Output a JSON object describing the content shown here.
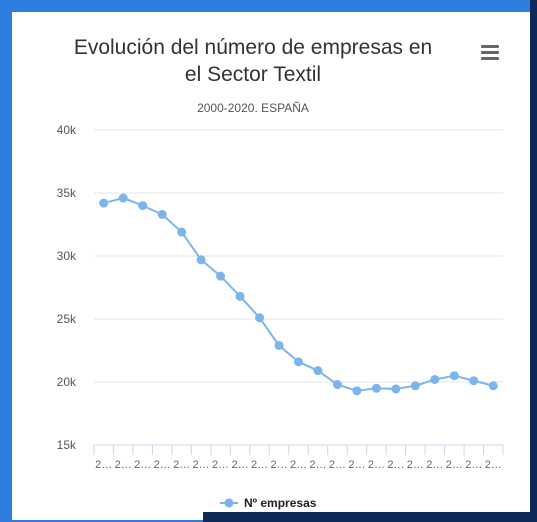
{
  "chart_data": {
    "type": "line",
    "title": "Evolución del número de empresas en el Sector Textil",
    "title_lines": [
      "Evolución del número de empresas en",
      "el Sector Textil"
    ],
    "subtitle": "2000-2020. ESPAÑA",
    "xlabel": "",
    "ylabel": "",
    "categories": [
      "2…",
      "2…",
      "2…",
      "2…",
      "2…",
      "2…",
      "2…",
      "2…",
      "2…",
      "2…",
      "2…",
      "2…",
      "2…",
      "2…",
      "2…",
      "2…",
      "2…",
      "2…",
      "2…",
      "2…",
      "2…"
    ],
    "series": [
      {
        "name": "Nº empresas",
        "color": "#7cb5ec",
        "values": [
          34200,
          34600,
          34000,
          33300,
          31900,
          29700,
          28400,
          26800,
          25100,
          22900,
          21600,
          20900,
          19800,
          19300,
          19500,
          19450,
          19700,
          20200,
          20500,
          20100,
          19700
        ]
      }
    ],
    "ylim": [
      15000,
      40000
    ],
    "yticks": [
      15000,
      20000,
      25000,
      30000,
      35000,
      40000
    ],
    "ytick_labels": [
      "15k",
      "20k",
      "25k",
      "30k",
      "35k",
      "40k"
    ],
    "grid": true,
    "legend_position": "bottom"
  },
  "menu_icon": "hamburger-menu-icon"
}
